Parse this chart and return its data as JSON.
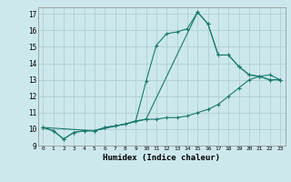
{
  "title": "",
  "xlabel": "Humidex (Indice chaleur)",
  "ylabel": "",
  "background_color": "#cce8ec",
  "grid_color": "#b0d0d4",
  "line_color": "#1a7a6e",
  "xlim": [
    -0.5,
    23.5
  ],
  "ylim": [
    9,
    17.4
  ],
  "xticks": [
    0,
    1,
    2,
    3,
    4,
    5,
    6,
    7,
    8,
    9,
    10,
    11,
    12,
    13,
    14,
    15,
    16,
    17,
    18,
    19,
    20,
    21,
    22,
    23
  ],
  "yticks": [
    9,
    10,
    11,
    12,
    13,
    14,
    15,
    16,
    17
  ],
  "line1_x": [
    0,
    1,
    2,
    3,
    4,
    5,
    6,
    7,
    8,
    9,
    10,
    11,
    12,
    13,
    14,
    15,
    16,
    17,
    18,
    19,
    20,
    21,
    22,
    23
  ],
  "line1_y": [
    10.1,
    9.9,
    9.4,
    9.8,
    9.9,
    9.9,
    10.1,
    10.2,
    10.3,
    10.5,
    10.6,
    10.6,
    10.7,
    10.7,
    10.8,
    11.0,
    11.2,
    11.5,
    12.0,
    12.5,
    13.0,
    13.2,
    13.3,
    13.0
  ],
  "line2_x": [
    0,
    1,
    2,
    3,
    4,
    5,
    6,
    7,
    8,
    9,
    10,
    11,
    12,
    13,
    14,
    15,
    16,
    17,
    18,
    19,
    20,
    21,
    22,
    23
  ],
  "line2_y": [
    10.1,
    9.9,
    9.4,
    9.8,
    9.9,
    9.9,
    10.1,
    10.2,
    10.3,
    10.5,
    12.9,
    15.1,
    15.8,
    15.9,
    16.1,
    17.1,
    16.4,
    14.5,
    14.5,
    13.8,
    13.3,
    13.2,
    13.0,
    13.0
  ],
  "line3_x": [
    0,
    5,
    10,
    15,
    16,
    17,
    18,
    19,
    20,
    21,
    22,
    23
  ],
  "line3_y": [
    10.1,
    9.9,
    10.6,
    17.1,
    16.4,
    14.5,
    14.5,
    13.8,
    13.3,
    13.2,
    13.0,
    13.0
  ]
}
